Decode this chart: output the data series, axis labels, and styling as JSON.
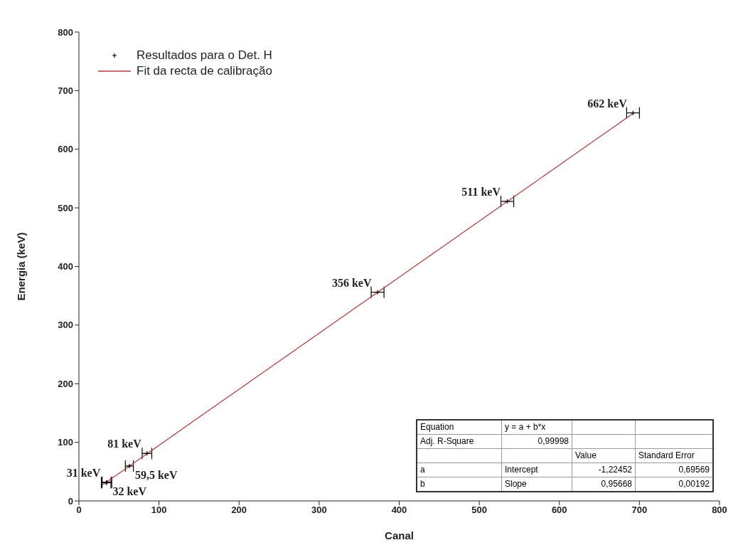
{
  "chart_data": {
    "type": "scatter",
    "xlabel": "Canal",
    "ylabel": "Energia (keV)",
    "xlim": [
      0,
      800
    ],
    "xticks": [
      0,
      100,
      200,
      300,
      400,
      500,
      600,
      700,
      800
    ],
    "ylim": [
      0,
      800
    ],
    "yticks": [
      0,
      100,
      200,
      300,
      400,
      500,
      600,
      700,
      800
    ],
    "legend": "top left",
    "series": [
      {
        "name": "Resultados para o Det. H",
        "marker": "cross",
        "color": "#000000",
        "x": [
          34,
          35,
          63,
          85,
          373,
          535,
          692
        ],
        "values": [
          31,
          32,
          59.5,
          81,
          356,
          511,
          662
        ],
        "xerrors": [
          6,
          6,
          5,
          6,
          8,
          8,
          8
        ]
      },
      {
        "name": "Fit da recta de calibração",
        "type": "line",
        "color": "#b03a3a",
        "x": [
          30,
          692
        ],
        "values": [
          28,
          661
        ]
      }
    ],
    "annotations": [
      {
        "text": "31 keV",
        "x": 34,
        "y": 31
      },
      {
        "text": "32 keV",
        "x": 35,
        "y": 32
      },
      {
        "text": "59,5 keV",
        "x": 63,
        "y": 59.5
      },
      {
        "text": "81 keV",
        "x": 85,
        "y": 81
      },
      {
        "text": "356 keV",
        "x": 373,
        "y": 356
      },
      {
        "text": "511 keV",
        "x": 535,
        "y": 511
      },
      {
        "text": "662 keV",
        "x": 692,
        "y": 662
      },
      "Equation\ty = a + b*x\t\t",
      "Adj. R-Square\t0,99998\t\t",
      "\t\tValue\tStandard Error",
      "a\tIntercept\t-1,22452\t0,69569",
      "b\tSlope\t0,95668\t0,00192"
    ]
  }
}
